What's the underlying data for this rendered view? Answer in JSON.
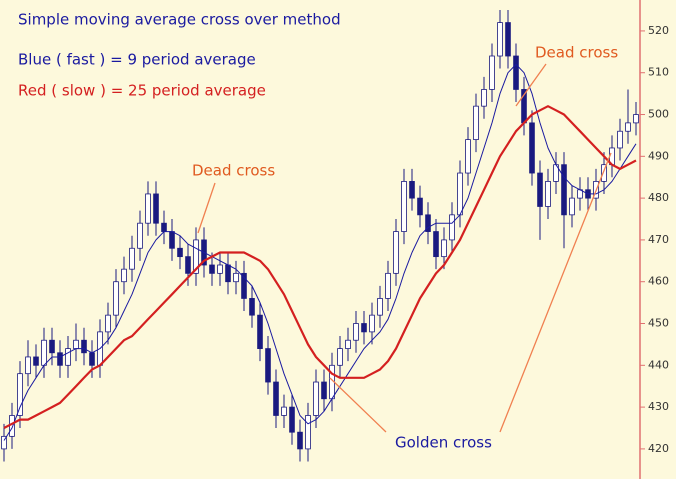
{
  "chart_data": {
    "type": "candlestick",
    "title": "Simple moving average cross over method",
    "title_color": "#1a1aa0",
    "categories": [
      null,
      null,
      null,
      null,
      null,
      null,
      null,
      null,
      null,
      null,
      null,
      null,
      null,
      null,
      null,
      null,
      null,
      null,
      null,
      null,
      null,
      null,
      null,
      null,
      null,
      null,
      null,
      null,
      null,
      null,
      null,
      null,
      null,
      null,
      null,
      null,
      null,
      null,
      null,
      null,
      null,
      null,
      null,
      null,
      null,
      null,
      null,
      null,
      null,
      null,
      null,
      null,
      null,
      null,
      null,
      null,
      null,
      null,
      null,
      null,
      null,
      null,
      null,
      null,
      null,
      null,
      null,
      null,
      null,
      null,
      null,
      null,
      null,
      null,
      null,
      null,
      null,
      null,
      null,
      null
    ],
    "candles": {
      "up_color": "#ffffff",
      "down_color": "#1a1a80",
      "outline_color": "#1a1a80",
      "open": [
        420,
        423,
        428,
        438,
        442,
        440,
        446,
        443,
        440,
        444,
        446,
        443,
        440,
        448,
        452,
        460,
        463,
        468,
        474,
        481,
        474,
        472,
        468,
        466,
        462,
        470,
        464,
        462,
        464,
        460,
        462,
        456,
        452,
        444,
        436,
        428,
        430,
        424,
        420,
        428,
        436,
        432,
        440,
        444,
        446,
        450,
        448,
        452,
        456,
        462,
        472,
        484,
        480,
        476,
        472,
        466,
        470,
        476,
        486,
        494,
        502,
        506,
        514,
        522,
        514,
        506,
        498,
        486,
        478,
        484,
        488,
        476,
        480,
        482,
        480,
        484,
        488,
        492,
        496,
        498
      ],
      "high": [
        426,
        431,
        441,
        446,
        445,
        449,
        449,
        446,
        447,
        450,
        449,
        446,
        451,
        455,
        463,
        466,
        471,
        477,
        484,
        484,
        477,
        475,
        471,
        469,
        473,
        473,
        467,
        467,
        467,
        465,
        465,
        459,
        455,
        447,
        439,
        433,
        433,
        427,
        431,
        439,
        439,
        443,
        447,
        449,
        453,
        453,
        455,
        459,
        465,
        475,
        487,
        487,
        483,
        479,
        475,
        473,
        479,
        489,
        497,
        505,
        509,
        517,
        525,
        525,
        517,
        509,
        501,
        489,
        487,
        491,
        491,
        483,
        485,
        485,
        487,
        491,
        495,
        499,
        506,
        503
      ],
      "low": [
        417,
        420,
        425,
        435,
        437,
        437,
        440,
        437,
        437,
        441,
        440,
        437,
        437,
        445,
        449,
        457,
        460,
        465,
        471,
        471,
        469,
        465,
        463,
        459,
        459,
        461,
        459,
        459,
        457,
        457,
        453,
        449,
        441,
        433,
        425,
        425,
        421,
        417,
        417,
        425,
        429,
        429,
        437,
        441,
        443,
        445,
        445,
        449,
        453,
        459,
        469,
        477,
        473,
        469,
        463,
        463,
        467,
        473,
        483,
        491,
        499,
        503,
        511,
        511,
        503,
        495,
        483,
        470,
        475,
        481,
        468,
        473,
        477,
        477,
        477,
        481,
        485,
        489,
        493,
        495
      ],
      "close": [
        423,
        428,
        438,
        442,
        440,
        446,
        443,
        440,
        444,
        446,
        443,
        440,
        448,
        452,
        460,
        463,
        468,
        474,
        481,
        474,
        472,
        468,
        466,
        462,
        470,
        464,
        462,
        464,
        460,
        462,
        456,
        452,
        444,
        436,
        428,
        430,
        424,
        420,
        428,
        436,
        432,
        440,
        444,
        446,
        450,
        448,
        452,
        456,
        462,
        472,
        484,
        480,
        476,
        472,
        466,
        470,
        476,
        486,
        494,
        502,
        506,
        514,
        522,
        514,
        506,
        498,
        486,
        478,
        484,
        488,
        476,
        480,
        482,
        480,
        484,
        488,
        492,
        496,
        498,
        500
      ]
    },
    "series": [
      {
        "name": "Blue ( fast ) = 9 period average",
        "color": "#1a1aa0",
        "width": 1,
        "values": [
          422,
          425,
          430,
          434,
          437,
          440,
          442,
          442,
          443,
          444,
          444,
          443,
          444,
          446,
          449,
          453,
          457,
          462,
          467,
          470,
          472,
          472,
          471,
          469,
          468,
          467,
          466,
          465,
          464,
          463,
          461,
          459,
          455,
          450,
          444,
          438,
          433,
          428,
          426,
          427,
          429,
          432,
          435,
          438,
          441,
          444,
          446,
          448,
          451,
          456,
          462,
          467,
          471,
          473,
          474,
          474,
          474,
          476,
          480,
          486,
          492,
          498,
          505,
          510,
          512,
          510,
          505,
          498,
          492,
          488,
          485,
          483,
          482,
          481,
          481,
          482,
          484,
          487,
          490,
          493
        ]
      },
      {
        "name": "Red ( slow ) = 25 period average",
        "color": "#d42020",
        "width": 2.2,
        "values": [
          425,
          426,
          427,
          427,
          428,
          429,
          430,
          431,
          433,
          435,
          437,
          439,
          440,
          442,
          444,
          446,
          447,
          449,
          451,
          453,
          455,
          457,
          459,
          461,
          463,
          465,
          466,
          467,
          467,
          467,
          467,
          466,
          465,
          463,
          460,
          457,
          453,
          449,
          445,
          442,
          440,
          438,
          437,
          437,
          437,
          437,
          438,
          439,
          441,
          444,
          448,
          452,
          456,
          459,
          462,
          464,
          467,
          470,
          474,
          478,
          482,
          486,
          490,
          493,
          496,
          498,
          500,
          501,
          502,
          501,
          500,
          498,
          496,
          494,
          492,
          490,
          488,
          487,
          488,
          489
        ]
      }
    ],
    "annotations": [
      {
        "text": "Dead cross",
        "color": "#e05a20"
      },
      {
        "text": "Dead cross",
        "color": "#e05a20"
      },
      {
        "text": "Golden cross",
        "color": "#1a1aa0"
      }
    ],
    "ylim": [
      412.8,
      527.4
    ],
    "yticks": [
      420,
      430,
      440,
      450,
      460,
      470,
      480,
      490,
      500,
      510,
      520
    ],
    "axis_color": "#e07070"
  }
}
